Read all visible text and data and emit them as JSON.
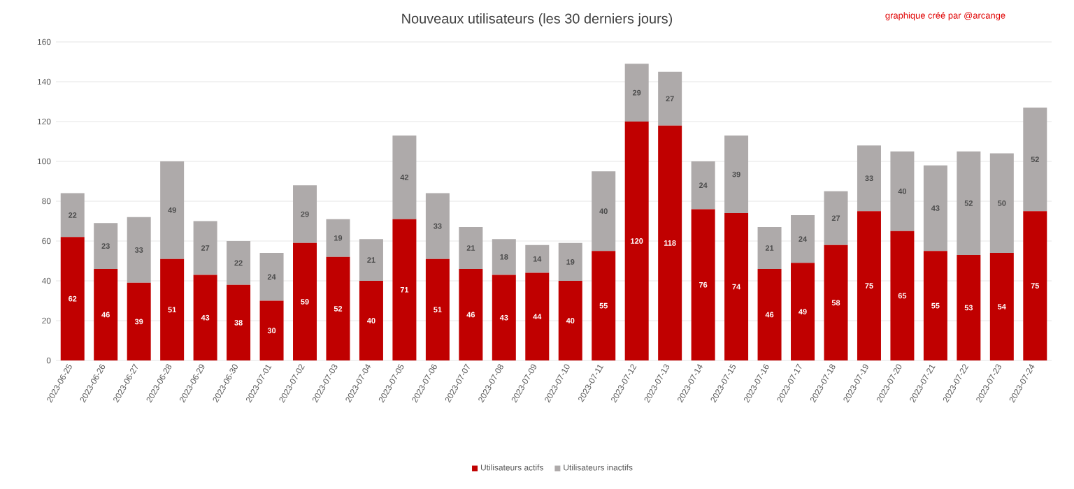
{
  "chart_data": {
    "type": "bar",
    "title": "Nouveaux utilisateurs (les 30 derniers  jours)",
    "annotations": [
      "graphique créé par @arcange"
    ],
    "categories": [
      "2023-06-25",
      "2023-06-26",
      "2023-06-27",
      "2023-06-28",
      "2023-06-29",
      "2023-06-30",
      "2023-07-01",
      "2023-07-02",
      "2023-07-03",
      "2023-07-04",
      "2023-07-05",
      "2023-07-06",
      "2023-07-07",
      "2023-07-08",
      "2023-07-09",
      "2023-07-10",
      "2023-07-11",
      "2023-07-12",
      "2023-07-13",
      "2023-07-14",
      "2023-07-15",
      "2023-07-16",
      "2023-07-17",
      "2023-07-18",
      "2023-07-19",
      "2023-07-20",
      "2023-07-21",
      "2023-07-22",
      "2023-07-23",
      "2023-07-24"
    ],
    "series": [
      {
        "name": "Utilisateurs actifs",
        "color": "#c00000",
        "values": [
          62,
          46,
          39,
          51,
          43,
          38,
          30,
          59,
          52,
          40,
          71,
          51,
          46,
          43,
          44,
          40,
          55,
          120,
          118,
          76,
          74,
          46,
          49,
          58,
          75,
          65,
          55,
          53,
          54,
          75
        ]
      },
      {
        "name": "Utilisateurs inactifs",
        "color": "#aeaaaa",
        "values": [
          22,
          23,
          33,
          49,
          27,
          22,
          24,
          29,
          19,
          21,
          42,
          33,
          21,
          18,
          14,
          19,
          40,
          29,
          27,
          24,
          39,
          21,
          24,
          27,
          33,
          40,
          43,
          52,
          50,
          52
        ]
      }
    ],
    "stacked": true,
    "ylim": [
      0,
      160
    ],
    "yticks": [
      0,
      20,
      40,
      60,
      80,
      100,
      120,
      140,
      160
    ],
    "grid": "y",
    "legend": "bottom",
    "data_labels": true
  }
}
